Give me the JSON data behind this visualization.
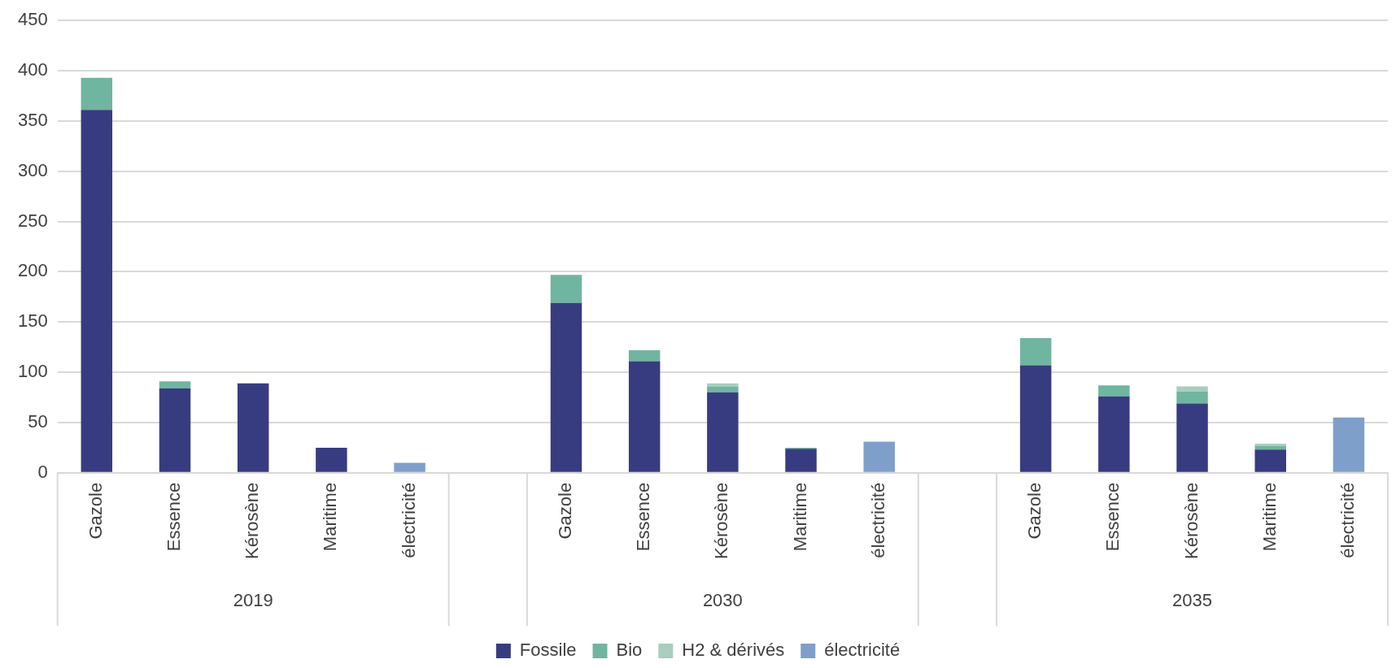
{
  "chart_data": {
    "type": "bar",
    "stacked": true,
    "categories": [
      "Gazole",
      "Essence",
      "Kérosène",
      "Maritime",
      "électricité",
      null,
      "Gazole",
      "Essence",
      "Kérosène",
      "Maritime",
      "électricité",
      null,
      "Gazole",
      "Essence",
      "Kérosène",
      "Maritime",
      "électricité"
    ],
    "series": [
      {
        "name": "Fossile",
        "color": "#373c80",
        "values": [
          361,
          84,
          89,
          25,
          null,
          null,
          169,
          111,
          80,
          24,
          null,
          null,
          107,
          76,
          69,
          23,
          null
        ]
      },
      {
        "name": "Bio",
        "color": "#70b5a0",
        "values": [
          32,
          7,
          null,
          null,
          null,
          null,
          28,
          11,
          6,
          1,
          null,
          null,
          27,
          11,
          12,
          4,
          null
        ]
      },
      {
        "name": "H2 & dérivés",
        "color": "#a9cdbf",
        "values": [
          null,
          null,
          null,
          null,
          null,
          null,
          null,
          null,
          3,
          null,
          null,
          null,
          null,
          null,
          5,
          2,
          null
        ]
      },
      {
        "name": "électricité",
        "color": "#7f9fcb",
        "values": [
          null,
          null,
          null,
          null,
          10,
          null,
          null,
          null,
          null,
          null,
          31,
          null,
          null,
          null,
          null,
          null,
          55
        ]
      }
    ],
    "annotations": [
      "2019",
      "2030",
      "2035"
    ],
    "ylim": [
      0,
      450
    ],
    "yticks": [
      0,
      50,
      100,
      150,
      200,
      250,
      300,
      350,
      400,
      450
    ],
    "grid": "y",
    "legend": "bottom"
  }
}
